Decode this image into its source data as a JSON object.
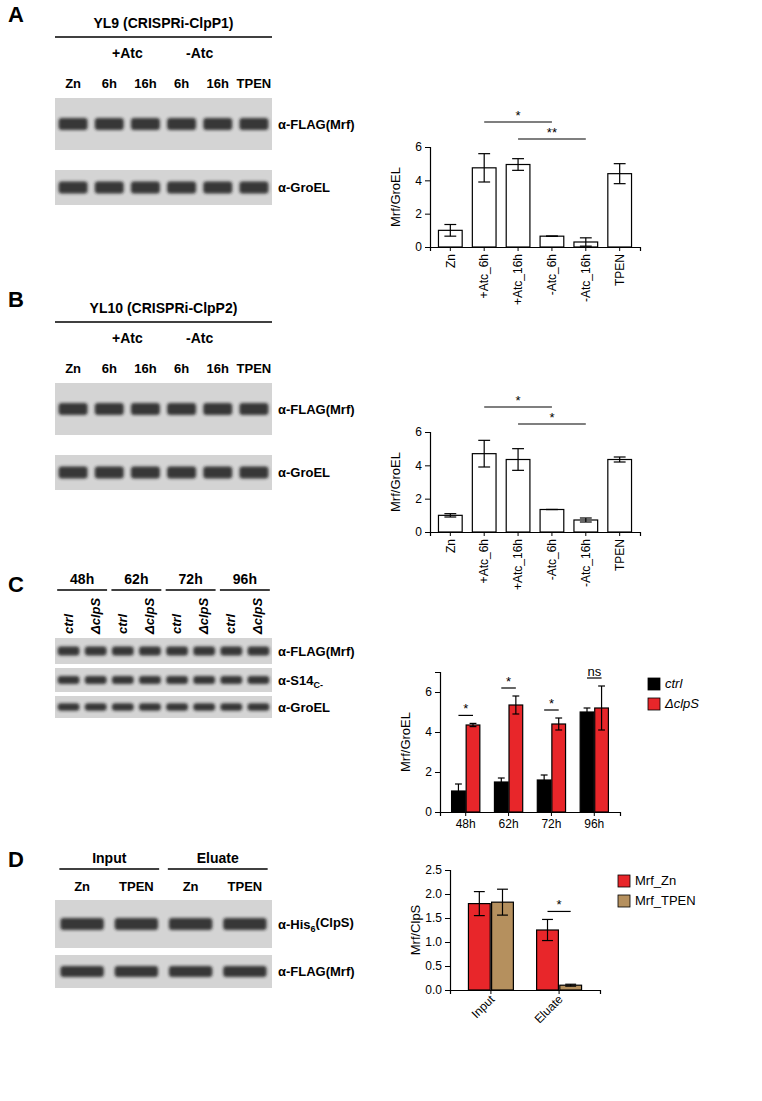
{
  "chart_data": [
    {
      "type": "bar",
      "ylabel": "Mrf/GroEL",
      "categories": [
        "Zn",
        "+Atc_6h",
        "+Atc_16h",
        "-Atc_6h",
        "-Atc_16h",
        "TPEN"
      ],
      "values": [
        1.0,
        4.75,
        4.95,
        0.65,
        0.3,
        4.4
      ],
      "errors": [
        0.35,
        0.85,
        0.35,
        0.0,
        0.25,
        0.6
      ],
      "color": "#ffffff",
      "ylim": [
        0,
        6
      ],
      "yticks": [
        0,
        2,
        4,
        6
      ],
      "annotations": [
        {
          "text": "*",
          "between": [
            "+Atc_6h",
            "-Atc_6h"
          ]
        },
        {
          "text": "**",
          "between": [
            "+Atc_16h",
            "-Atc_16h"
          ]
        }
      ]
    },
    {
      "type": "bar",
      "ylabel": "Mrf/GroEL",
      "categories": [
        "Zn",
        "+Atc_6h",
        "+Atc_16h",
        "-Atc_6h",
        "-Atc_16h",
        "TPEN"
      ],
      "values": [
        1.0,
        4.7,
        4.35,
        1.35,
        0.72,
        4.35
      ],
      "errors": [
        0.1,
        0.8,
        0.65,
        0.0,
        0.12,
        0.15
      ],
      "color": "#ffffff",
      "ylim": [
        0,
        6
      ],
      "yticks": [
        0,
        2,
        4,
        6
      ],
      "annotations": [
        {
          "text": "*",
          "between": [
            "+Atc_6h",
            "-Atc_6h"
          ]
        },
        {
          "text": "*",
          "between": [
            "+Atc_16h",
            "-Atc_16h"
          ]
        }
      ]
    },
    {
      "type": "bar",
      "ylabel": "Mrf/GroEL",
      "categories": [
        "48h",
        "62h",
        "72h",
        "96h"
      ],
      "series": [
        {
          "name": "ctrl",
          "color": "#000000",
          "values": [
            1.05,
            1.5,
            1.6,
            5.0
          ],
          "errors": [
            0.35,
            0.2,
            0.25,
            0.2
          ]
        },
        {
          "name": "ΔclpS",
          "color": "#e8262a",
          "values": [
            4.35,
            5.35,
            4.4,
            5.2
          ],
          "errors": [
            0.08,
            0.45,
            0.3,
            1.1
          ]
        }
      ],
      "ylim": [
        0,
        7
      ],
      "yticks": [
        0,
        2,
        4,
        6
      ],
      "legend": "right",
      "annotations": [
        {
          "text": "*",
          "category": "48h"
        },
        {
          "text": "*",
          "category": "62h"
        },
        {
          "text": "*",
          "category": "72h"
        },
        {
          "text": "ns",
          "category": "96h"
        }
      ]
    },
    {
      "type": "bar",
      "ylabel": "Mrf/ClpS",
      "categories": [
        "Input",
        "Eluate"
      ],
      "series": [
        {
          "name": "Mrf_Zn",
          "color": "#e8262a",
          "values": [
            1.8,
            1.25
          ],
          "errors": [
            0.25,
            0.22
          ]
        },
        {
          "name": "Mrf_TPEN",
          "color": "#b5905e",
          "values": [
            1.83,
            0.1
          ],
          "errors": [
            0.27,
            0.02
          ]
        }
      ],
      "ylim": [
        0,
        2.5
      ],
      "yticks": [
        {
          "value": 0,
          "label": "0.0"
        },
        0.5,
        {
          "value": 1,
          "label": "1.0"
        },
        1.5,
        {
          "value": 2,
          "label": "2.0"
        },
        2.5
      ],
      "legend": "right",
      "annotations": [
        {
          "text": "*",
          "category": "Eluate"
        }
      ]
    }
  ],
  "panels": [
    {
      "letter": "A",
      "title": "YL9 (CRISPRi-ClpP1)",
      "lane_groups": [
        {
          "lanes": [
            "Zn"
          ]
        },
        {
          "label": "+Atc",
          "lanes": [
            "6h",
            "16h"
          ]
        },
        {
          "label": "-Atc",
          "lanes": [
            "6h",
            "16h"
          ]
        },
        {
          "lanes": [
            "TPEN"
          ]
        }
      ],
      "rows": [
        {
          "label": "α-FLAG(Mrf)"
        },
        {
          "label": "α-GroEL"
        }
      ]
    },
    {
      "letter": "B",
      "title": "YL10 (CRISPRi-ClpP2)",
      "lane_groups": [
        {
          "lanes": [
            "Zn"
          ]
        },
        {
          "label": "+Atc",
          "lanes": [
            "6h",
            "16h"
          ]
        },
        {
          "label": "-Atc",
          "lanes": [
            "6h",
            "16h"
          ]
        },
        {
          "lanes": [
            "TPEN"
          ]
        }
      ],
      "rows": [
        {
          "label": "α-FLAG(Mrf)"
        },
        {
          "label": "α-GroEL"
        }
      ]
    },
    {
      "letter": "C",
      "lane_groups": [
        {
          "label": "48h",
          "lanes": [
            "ctrl",
            "ΔclpS"
          ]
        },
        {
          "label": "62h",
          "lanes": [
            "ctrl",
            "ΔclpS"
          ]
        },
        {
          "label": "72h",
          "lanes": [
            "ctrl",
            "ΔclpS"
          ]
        },
        {
          "label": "96h",
          "lanes": [
            "ctrl",
            "ΔclpS"
          ]
        }
      ],
      "rows": [
        {
          "label": "α-FLAG(Mrf)"
        },
        {
          "label": "α-S14",
          "sub": "C-"
        },
        {
          "label": "α-GroEL"
        }
      ]
    },
    {
      "letter": "D",
      "lane_groups": [
        {
          "label": "Input",
          "lanes": [
            "Zn",
            "TPEN"
          ]
        },
        {
          "label": "Eluate",
          "lanes": [
            "Zn",
            "TPEN"
          ]
        }
      ],
      "rows": [
        {
          "label": "α-His",
          "sub": "6",
          "after": "(ClpS)"
        },
        {
          "label": "α-FLAG(Mrf)"
        }
      ]
    }
  ]
}
